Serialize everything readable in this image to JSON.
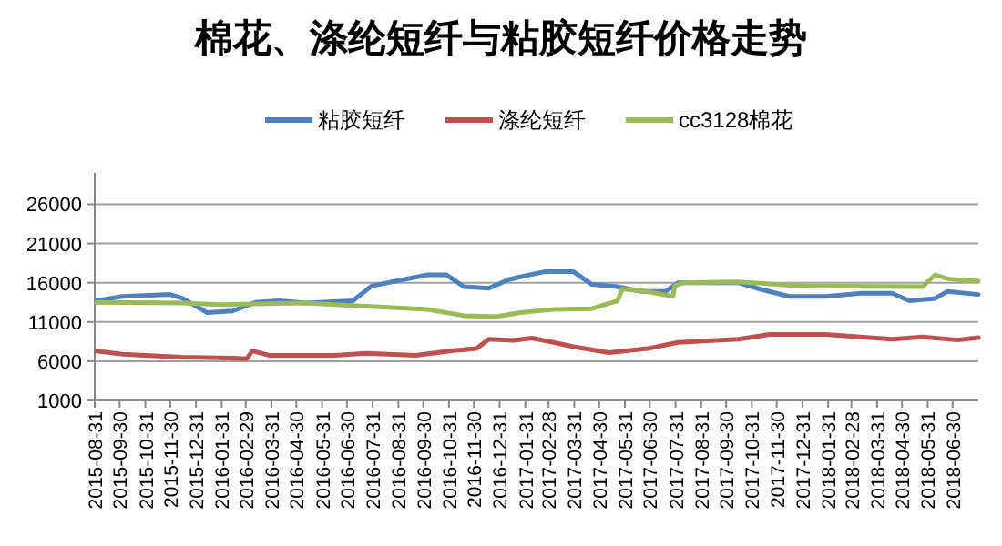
{
  "chart_data": {
    "type": "line",
    "title": "棉花、涤纶短纤与粘胶短纤价格走势",
    "legend": "top",
    "grid": "y",
    "marker": "none",
    "line_style": "solid",
    "xlim": [
      "2015-08-31",
      "2018-07-31"
    ],
    "xticks": [
      "2015-08-31",
      "2015-09-30",
      "2015-10-31",
      "2015-11-30",
      "2015-12-31",
      "2016-01-31",
      "2016-02-29",
      "2016-03-31",
      "2016-04-30",
      "2016-05-31",
      "2016-06-30",
      "2016-07-31",
      "2016-08-31",
      "2016-09-30",
      "2016-10-31",
      "2016-11-30",
      "2016-12-31",
      "2017-01-31",
      "2017-02-28",
      "2017-03-31",
      "2017-04-30",
      "2017-05-31",
      "2017-06-30",
      "2017-07-31",
      "2017-08-31",
      "2017-09-30",
      "2017-10-31",
      "2017-11-30",
      "2017-12-31",
      "2018-01-31",
      "2018-02-28",
      "2018-03-31",
      "2018-04-30",
      "2018-05-31",
      "2018-06-30"
    ],
    "ylim": [
      1000,
      30000
    ],
    "yticks": [
      1000,
      6000,
      11000,
      16000,
      21000,
      26000
    ],
    "series": [
      {
        "name": "粘胶短纤",
        "color": "#4f81bd",
        "x": [
          "2015-09-02",
          "2015-10-03",
          "2015-11-30",
          "2015-12-15",
          "2016-01-13",
          "2016-02-13",
          "2016-03-12",
          "2016-04-10",
          "2016-05-11",
          "2016-07-07",
          "2016-07-30",
          "2016-09-06",
          "2016-10-05",
          "2016-10-28",
          "2016-11-18",
          "2016-12-18",
          "2017-01-11",
          "2017-01-25",
          "2017-02-23",
          "2017-03-30",
          "2017-04-21",
          "2017-05-22",
          "2017-06-20",
          "2017-07-19",
          "2017-08-03",
          "2017-10-15",
          "2017-11-06",
          "2017-12-15",
          "2018-01-28",
          "2018-03-12",
          "2018-04-18",
          "2018-05-09",
          "2018-06-09",
          "2018-06-24",
          "2018-07-31"
        ],
        "values": [
          13700,
          14250,
          14500,
          14000,
          12200,
          12400,
          13500,
          13700,
          13400,
          13700,
          15600,
          16400,
          17000,
          17000,
          15500,
          15300,
          16400,
          16750,
          17400,
          17400,
          15800,
          15500,
          14900,
          14900,
          16000,
          16000,
          15300,
          14250,
          14250,
          14650,
          14650,
          13700,
          14000,
          14900,
          14500
        ]
      },
      {
        "name": "涤纶短纤",
        "color": "#c0504d",
        "x": [
          "2015-09-02",
          "2015-10-03",
          "2015-12-15",
          "2016-02-13",
          "2016-03-01",
          "2016-03-08",
          "2016-03-28",
          "2016-06-15",
          "2016-07-23",
          "2016-09-21",
          "2016-11-05",
          "2016-12-03",
          "2016-12-18",
          "2017-01-17",
          "2017-02-08",
          "2017-03-06",
          "2017-03-30",
          "2017-05-12",
          "2017-06-27",
          "2017-08-03",
          "2017-10-15",
          "2017-11-21",
          "2018-01-28",
          "2018-04-18",
          "2018-05-25",
          "2018-07-06",
          "2018-07-31"
        ],
        "values": [
          7300,
          6900,
          6500,
          6400,
          6300,
          7300,
          6750,
          6750,
          7000,
          6750,
          7350,
          7600,
          8800,
          8650,
          8950,
          8400,
          7850,
          7100,
          7600,
          8400,
          8800,
          9400,
          9400,
          8800,
          9100,
          8700,
          9000
        ]
      },
      {
        "name": "cc3128棉花",
        "color": "#9bbb59",
        "x": [
          "2015-09-02",
          "2015-12-15",
          "2016-01-28",
          "2016-05-11",
          "2016-07-23",
          "2016-10-05",
          "2016-11-18",
          "2016-12-18",
          "2016-12-28",
          "2017-01-25",
          "2017-03-06",
          "2017-04-21",
          "2017-05-22",
          "2017-05-28",
          "2017-06-27",
          "2017-07-28",
          "2017-07-30",
          "2017-08-09",
          "2017-10-15",
          "2017-12-31",
          "2018-05-25",
          "2018-06-09",
          "2018-06-24",
          "2018-07-31"
        ],
        "values": [
          13500,
          13400,
          13200,
          13400,
          13000,
          12600,
          11800,
          11700,
          11700,
          12200,
          12600,
          12700,
          13700,
          15200,
          14900,
          14250,
          15600,
          16000,
          16100,
          15600,
          15500,
          17000,
          16500,
          16200
        ]
      }
    ]
  }
}
